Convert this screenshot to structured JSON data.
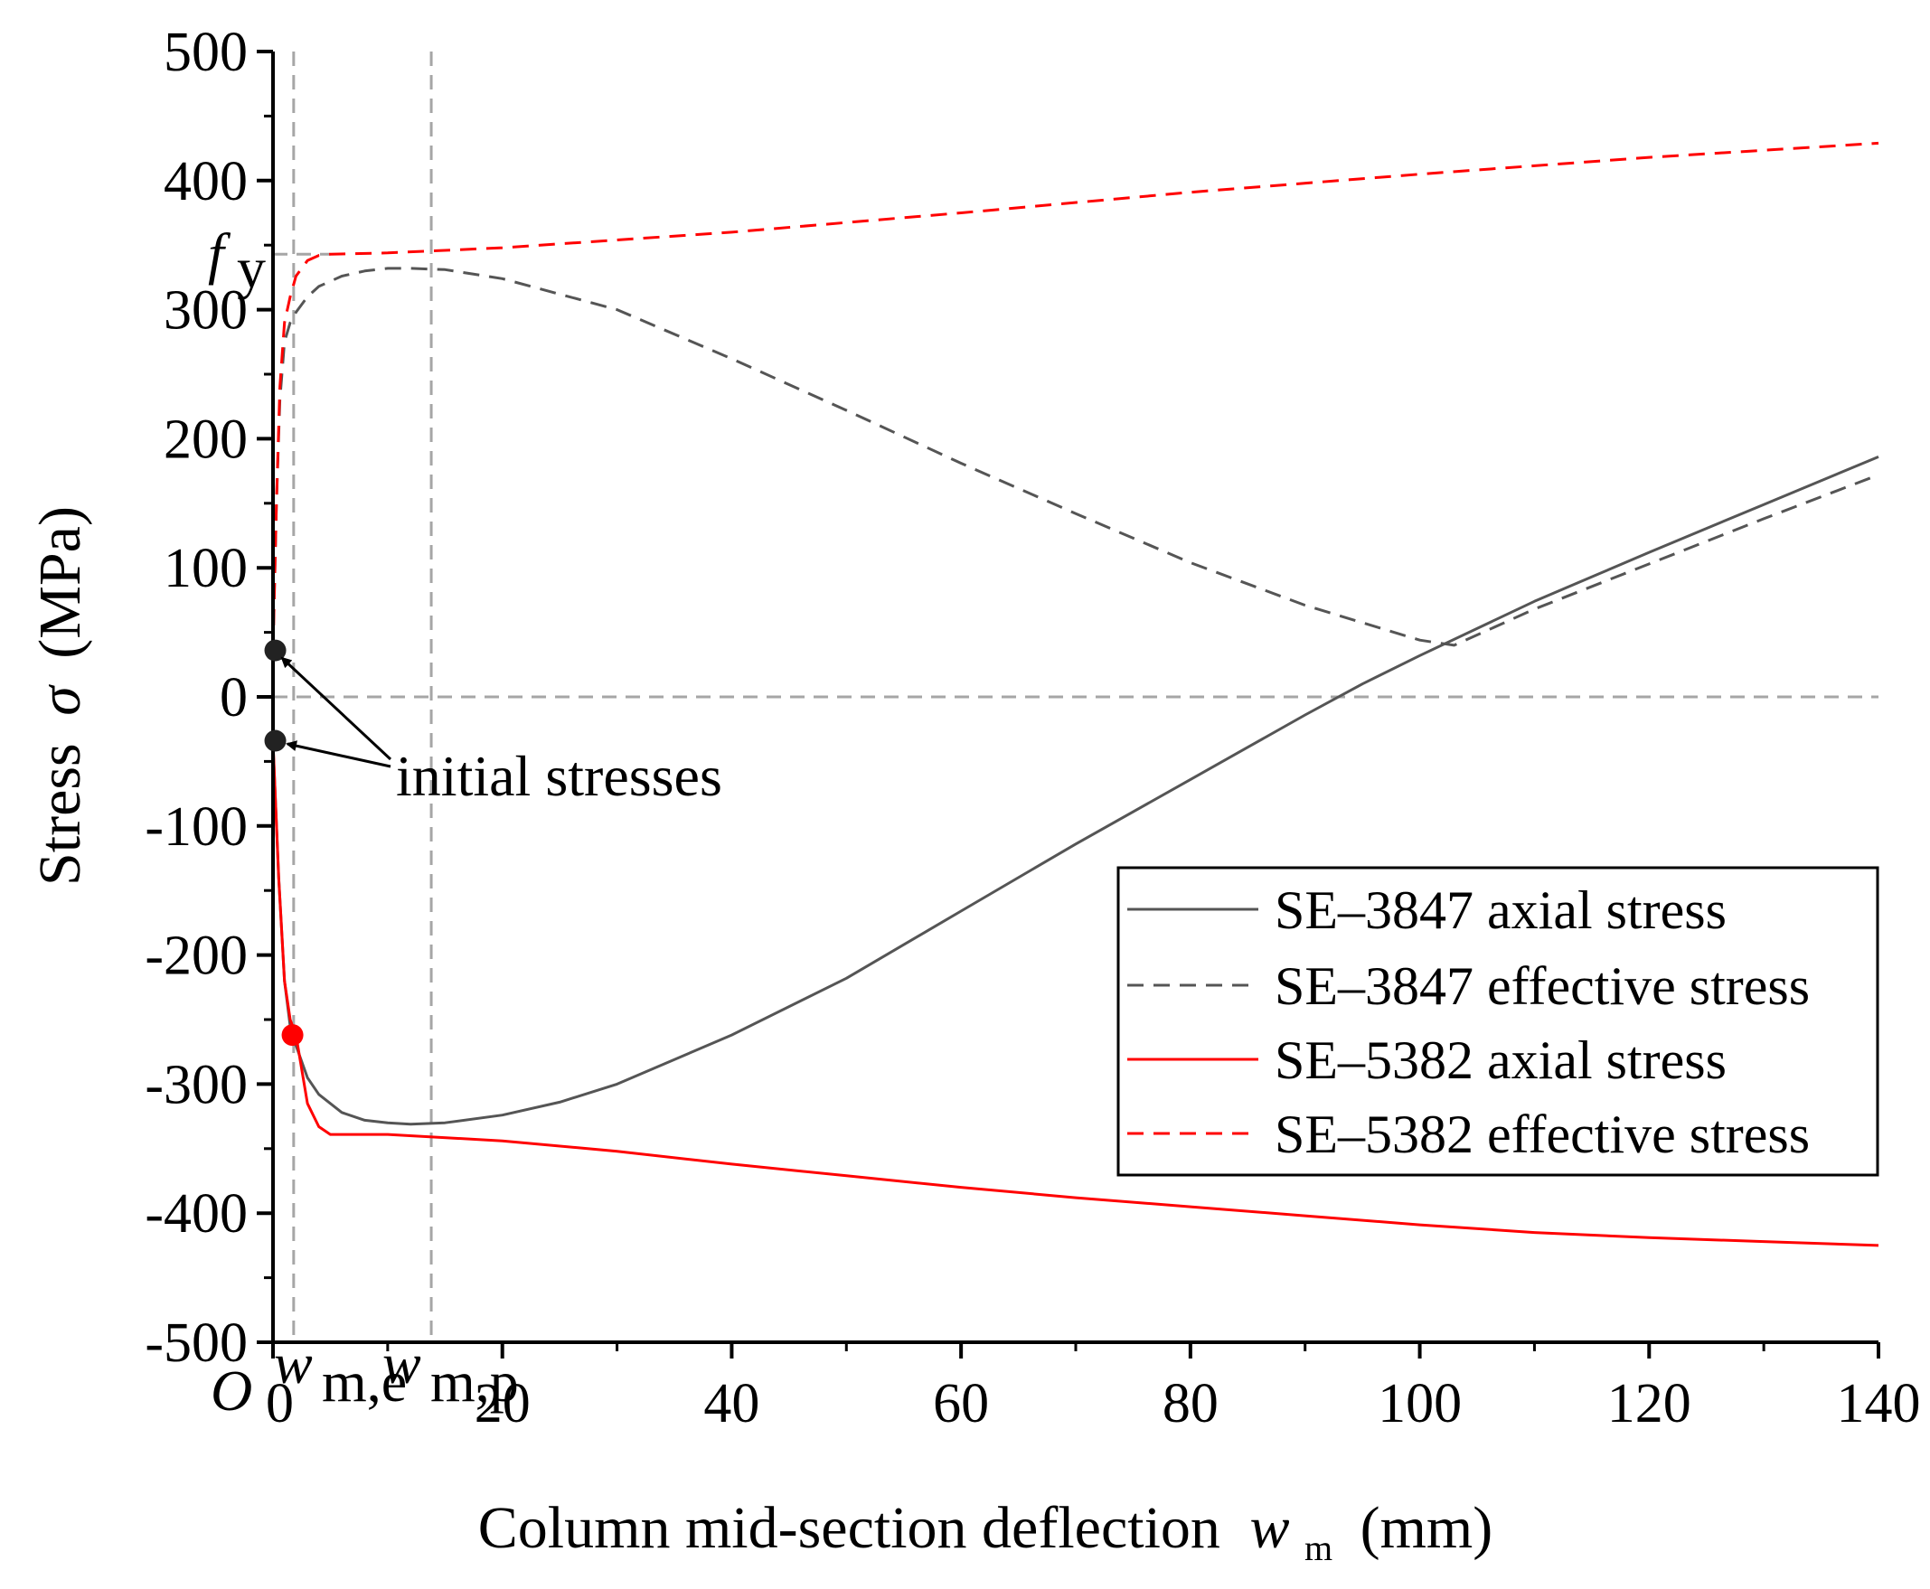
{
  "chart_data": {
    "type": "line",
    "xlabel": "Column mid-section deflection",
    "xlabel_symbol": "w",
    "xlabel_subscript": "m",
    "xlabel_unit": "(mm)",
    "ylabel": "Stress",
    "ylabel_symbol": "σ",
    "ylabel_unit": "(MPa)",
    "xlim": [
      0,
      140
    ],
    "ylim": [
      -500,
      500
    ],
    "x_ticks": [
      0,
      20,
      40,
      60,
      80,
      100,
      120,
      140
    ],
    "x_tick_labels": [
      "0",
      "20",
      "40",
      "60",
      "80",
      "100",
      "120",
      "140"
    ],
    "y_ticks": [
      -500,
      -400,
      -300,
      -200,
      -100,
      0,
      100,
      200,
      300,
      400,
      500
    ],
    "y_tick_labels": [
      "-500",
      "-400",
      "-300",
      "-200",
      "-100",
      "0",
      "100",
      "200",
      "300",
      "400",
      "500"
    ],
    "grid": false,
    "legend_position": "lower-right",
    "colors": {
      "black": "#555555",
      "red": "#ff0000",
      "guide": "#a6a6a6",
      "marker": "#222222"
    },
    "series": [
      {
        "name": "SE–3847 axial stress",
        "color": "#555555",
        "dash": "solid",
        "x": [
          0,
          0.5,
          1,
          1.5,
          2,
          3,
          4,
          6,
          8,
          10,
          12,
          15,
          20,
          25,
          30,
          40,
          50,
          60,
          70,
          80,
          85,
          90,
          95,
          100,
          110,
          120,
          130,
          140
        ],
        "y": [
          -35,
          -140,
          -220,
          -255,
          -270,
          -295,
          -308,
          -322,
          -328,
          -330,
          -331,
          -330,
          -324,
          -314,
          -300,
          -262,
          -218,
          -166,
          -114,
          -64,
          -39,
          -14,
          10,
          32,
          74,
          112,
          149,
          186
        ]
      },
      {
        "name": "SE–3847 effective stress",
        "color": "#555555",
        "dash": "dashed",
        "x": [
          0,
          0.3,
          0.6,
          1,
          1.5,
          2,
          3,
          4,
          6,
          8,
          10,
          12,
          15,
          20,
          30,
          40,
          50,
          60,
          70,
          80,
          90,
          100,
          103,
          110,
          120,
          130,
          140
        ],
        "y": [
          35,
          150,
          230,
          275,
          290,
          298,
          310,
          318,
          326,
          330,
          332,
          332,
          331,
          324,
          300,
          262,
          222,
          181,
          142,
          104,
          71,
          44,
          40,
          68,
          103,
          138,
          172
        ]
      },
      {
        "name": "SE–5382 axial stress",
        "color": "#ff0000",
        "dash": "solid",
        "x": [
          0,
          0.5,
          1,
          1.5,
          2,
          3,
          4,
          5,
          10,
          20,
          30,
          40,
          50,
          60,
          70,
          80,
          90,
          100,
          110,
          120,
          130,
          140
        ],
        "y": [
          -35,
          -140,
          -220,
          -250,
          -262,
          -315,
          -333,
          -339,
          -339,
          -344,
          -352,
          -362,
          -371,
          -380,
          -388,
          -395,
          -402,
          -409,
          -415,
          -419,
          -422,
          -425
        ]
      },
      {
        "name": "SE–5382 effective stress",
        "color": "#ff0000",
        "dash": "dashed",
        "x": [
          0,
          0.3,
          0.6,
          1,
          1.5,
          2,
          3,
          4,
          5,
          10,
          20,
          40,
          60,
          80,
          100,
          120,
          140
        ],
        "y": [
          35,
          150,
          240,
          290,
          310,
          326,
          338,
          342,
          343,
          344,
          348,
          360,
          375,
          391,
          405,
          418,
          429
        ]
      }
    ],
    "markers": [
      {
        "x": 0.2,
        "y": 36,
        "color": "#222222"
      },
      {
        "x": 0.2,
        "y": -34,
        "color": "#222222"
      },
      {
        "x": 1.7,
        "y": -262,
        "color": "#ff0000"
      }
    ],
    "reference_lines": [
      {
        "orientation": "vertical",
        "x": 1.8,
        "from": -500,
        "to": 500
      },
      {
        "orientation": "vertical",
        "x": 13.8,
        "from": -500,
        "to": 500
      },
      {
        "orientation": "horizontal",
        "y": 0,
        "from": 0,
        "to": 140
      },
      {
        "orientation": "horizontal",
        "y": 343,
        "from": 0,
        "to": 5
      }
    ],
    "annotations": {
      "initial_stresses": "initial stresses",
      "origin_label": "O",
      "fy_main": "f",
      "fy_sub": "y",
      "wme_main": "w",
      "wme_sub": "m,e",
      "wmp_main": "w",
      "wmp_sub": "m,p"
    }
  }
}
